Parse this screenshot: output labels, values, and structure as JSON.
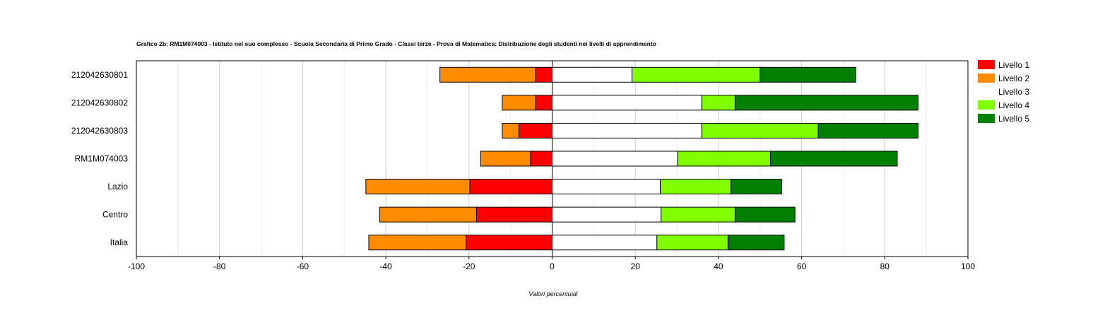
{
  "chart_data": {
    "type": "bar",
    "orientation": "horizontal-stacked-diverging",
    "title": "Grafico 2b: RM1M074003 - Istituto nel suo complesso - Scuola Secondaria di Primo Grado - Classi terze - Prova di Matematica: Distribuzione degli studenti nei livelli di apprendimento",
    "xlabel": "Valori percentuali",
    "ylabel": "",
    "xlim": [
      -100,
      100
    ],
    "xticks": [
      -100,
      -80,
      -60,
      -40,
      -20,
      0,
      20,
      40,
      60,
      80,
      100
    ],
    "grid": true,
    "legend_position": "right",
    "categories": [
      "212042630801",
      "212042630802",
      "212042630803",
      "RM1M074003",
      "Lazio",
      "Centro",
      "Italia"
    ],
    "series": [
      {
        "name": "Livello 1",
        "color": "#ff0000",
        "values": [
          -4.0,
          -4.0,
          -8.0,
          -5.2,
          -19.8,
          -18.2,
          -20.7
        ]
      },
      {
        "name": "Livello 2",
        "color": "#ff8c00",
        "values": [
          -23.0,
          -8.0,
          -4.0,
          -12.0,
          -25.0,
          -23.3,
          -23.4
        ]
      },
      {
        "name": "Livello 3",
        "color": "#ffffff",
        "values": [
          19.2,
          36.0,
          36.0,
          30.2,
          26.0,
          26.2,
          25.2
        ]
      },
      {
        "name": "Livello 4",
        "color": "#80ff00",
        "values": [
          30.8,
          8.0,
          28.0,
          22.3,
          17.0,
          17.8,
          17.1
        ]
      },
      {
        "name": "Livello 5",
        "color": "#008000",
        "values": [
          23.0,
          44.0,
          24.0,
          30.5,
          12.2,
          14.4,
          13.5
        ]
      }
    ]
  }
}
